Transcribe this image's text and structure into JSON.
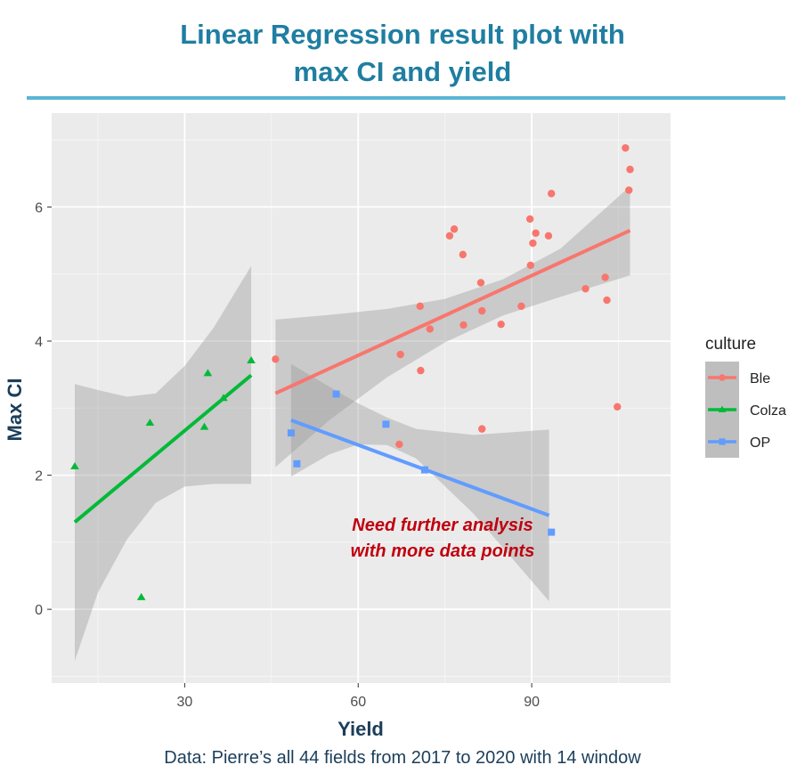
{
  "page": {
    "title_line1": "Linear Regression result plot with",
    "title_line2": "max CI and yield",
    "caption": "Data: Pierre’s all 44 fields from 2017 to 2020 with 14 window"
  },
  "chart_data": {
    "type": "scatter",
    "title": "Linear Regression result plot with max CI and yield",
    "xlabel": "Yield",
    "ylabel": "Max CI",
    "xlim": [
      7,
      114
    ],
    "ylim": [
      -1.1,
      7.4
    ],
    "xticks": [
      30,
      60,
      90
    ],
    "yticks": [
      0,
      2,
      4,
      6
    ],
    "xtick_labels": [
      "30",
      "60",
      "90"
    ],
    "ytick_labels": [
      "0",
      "2",
      "4",
      "6"
    ],
    "grid": true,
    "legend": {
      "title": "culture",
      "placement": "right",
      "entries": [
        "Ble",
        "Colza",
        "OP"
      ]
    },
    "annotation": {
      "line1": "Need further analysis",
      "line2": "with more data points",
      "color": "#C0000E"
    },
    "series": [
      {
        "name": "Ble",
        "color": "#F8766D",
        "marker": "circle",
        "points": [
          [
            45.7,
            3.73
          ],
          [
            67.1,
            2.46
          ],
          [
            67.3,
            3.8
          ],
          [
            70.7,
            4.52
          ],
          [
            70.8,
            3.56
          ],
          [
            72.4,
            4.18
          ],
          [
            75.8,
            5.57
          ],
          [
            76.6,
            5.67
          ],
          [
            78.1,
            5.29
          ],
          [
            78.2,
            4.24
          ],
          [
            81.2,
            4.87
          ],
          [
            81.4,
            4.45
          ],
          [
            81.4,
            2.69
          ],
          [
            84.7,
            4.25
          ],
          [
            88.2,
            4.52
          ],
          [
            89.7,
            5.82
          ],
          [
            89.8,
            5.13
          ],
          [
            90.2,
            5.46
          ],
          [
            90.7,
            5.61
          ],
          [
            92.9,
            5.57
          ],
          [
            93.4,
            6.2
          ],
          [
            99.3,
            4.78
          ],
          [
            102.7,
            4.95
          ],
          [
            103.0,
            4.61
          ],
          [
            104.8,
            3.02
          ],
          [
            106.2,
            6.88
          ],
          [
            106.8,
            6.25
          ],
          [
            107.0,
            6.56
          ]
        ],
        "fit": {
          "x": [
            45.7,
            107.0
          ],
          "y": [
            3.22,
            5.65
          ]
        },
        "ci_upper": [
          [
            45.7,
            4.32
          ],
          [
            55.0,
            4.39
          ],
          [
            65.0,
            4.48
          ],
          [
            75.0,
            4.63
          ],
          [
            85.0,
            4.92
          ],
          [
            95.0,
            5.38
          ],
          [
            107.0,
            6.31
          ]
        ],
        "ci_lower": [
          [
            45.7,
            2.12
          ],
          [
            55.0,
            2.82
          ],
          [
            65.0,
            3.46
          ],
          [
            75.0,
            3.98
          ],
          [
            85.0,
            4.38
          ],
          [
            95.0,
            4.66
          ],
          [
            107.0,
            4.98
          ]
        ]
      },
      {
        "name": "Colza",
        "color": "#00BA38",
        "marker": "triangle",
        "points": [
          [
            11.0,
            2.13
          ],
          [
            22.5,
            0.18
          ],
          [
            24.0,
            2.78
          ],
          [
            33.4,
            2.72
          ],
          [
            34.0,
            3.52
          ],
          [
            36.7,
            3.15
          ],
          [
            41.5,
            3.71
          ]
        ],
        "fit": {
          "x": [
            11.0,
            41.5
          ],
          "y": [
            1.3,
            3.49
          ]
        },
        "ci_upper": [
          [
            11.0,
            3.36
          ],
          [
            15.0,
            3.27
          ],
          [
            20.0,
            3.17
          ],
          [
            25.0,
            3.22
          ],
          [
            30.0,
            3.63
          ],
          [
            35.0,
            4.2
          ],
          [
            41.5,
            5.12
          ]
        ],
        "ci_lower": [
          [
            11.0,
            -0.77
          ],
          [
            15.0,
            0.25
          ],
          [
            20.0,
            1.04
          ],
          [
            25.0,
            1.59
          ],
          [
            30.0,
            1.83
          ],
          [
            35.0,
            1.87
          ],
          [
            41.5,
            1.87
          ]
        ]
      },
      {
        "name": "OP",
        "color": "#619CFF",
        "marker": "square",
        "points": [
          [
            48.4,
            2.63
          ],
          [
            49.4,
            2.17
          ],
          [
            56.2,
            3.21
          ],
          [
            64.8,
            2.76
          ],
          [
            71.5,
            2.08
          ],
          [
            93.4,
            1.15
          ]
        ],
        "fit": {
          "x": [
            48.4,
            93.0
          ],
          "y": [
            2.82,
            1.4
          ]
        },
        "ci_upper": [
          [
            48.4,
            3.66
          ],
          [
            55.0,
            3.32
          ],
          [
            60.0,
            3.07
          ],
          [
            65.0,
            2.86
          ],
          [
            70.0,
            2.69
          ],
          [
            80.0,
            2.6
          ],
          [
            93.0,
            2.68
          ]
        ],
        "ci_lower": [
          [
            48.4,
            1.98
          ],
          [
            55.0,
            2.31
          ],
          [
            60.0,
            2.46
          ],
          [
            65.0,
            2.45
          ],
          [
            70.0,
            2.25
          ],
          [
            80.0,
            1.42
          ],
          [
            93.0,
            0.12
          ]
        ]
      }
    ]
  }
}
